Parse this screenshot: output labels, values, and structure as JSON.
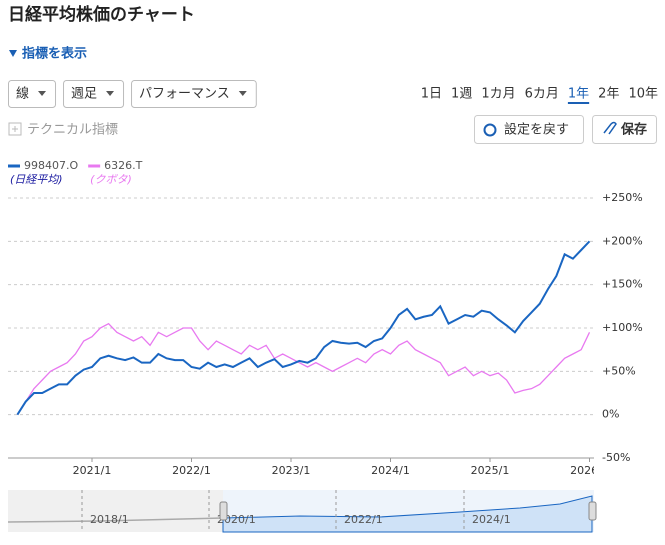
{
  "header": {
    "title": "日経平均株価のチャート",
    "indicator_toggle": "指標を表示"
  },
  "controls": {
    "dropdowns": [
      "線",
      "週足",
      "パフォーマンス"
    ],
    "periods": [
      "1日",
      "1週",
      "1カ月",
      "6カ月",
      "1年",
      "2年",
      "10年"
    ],
    "active_period": "1年",
    "technical": "テクニカル指標",
    "reset": "設定を戻す",
    "save": "保存"
  },
  "navigator": {
    "labels": [
      "2018/1",
      "2020/1",
      "2022/1",
      "2024/1"
    ]
  },
  "chart_data": {
    "type": "line",
    "x": [
      "2020/4",
      "2020/5",
      "2020/6",
      "2020/7",
      "2020/8",
      "2020/9",
      "2020/10",
      "2020/11",
      "2020/12",
      "2021/1",
      "2021/2",
      "2021/3",
      "2021/4",
      "2021/5",
      "2021/6",
      "2021/7",
      "2021/8",
      "2021/9",
      "2021/10",
      "2021/11",
      "2021/12",
      "2022/1",
      "2022/2",
      "2022/3",
      "2022/4",
      "2022/5",
      "2022/6",
      "2022/7",
      "2022/8",
      "2022/9",
      "2022/10",
      "2022/11",
      "2022/12",
      "2023/1",
      "2023/2",
      "2023/3",
      "2023/4",
      "2023/5",
      "2023/6",
      "2023/7",
      "2023/8",
      "2023/9",
      "2023/10",
      "2023/11",
      "2023/12",
      "2024/1",
      "2024/2",
      "2024/3",
      "2024/4",
      "2024/5",
      "2024/6",
      "2024/7",
      "2024/8",
      "2024/9",
      "2024/10",
      "2024/11",
      "2024/12",
      "2025/1",
      "2025/2",
      "2025/3",
      "2025/4",
      "2025/5",
      "2025/6",
      "2025/7",
      "2025/8",
      "2025/9",
      "2025/10",
      "2025/11",
      "2025/12",
      "2026/1"
    ],
    "series": [
      {
        "name": "998407.O",
        "sub": "(日経平均)",
        "color": "#1a66c2",
        "values": [
          0,
          15,
          25,
          25,
          30,
          35,
          35,
          45,
          52,
          55,
          65,
          68,
          65,
          63,
          66,
          60,
          60,
          70,
          65,
          63,
          63,
          55,
          53,
          60,
          55,
          58,
          55,
          60,
          65,
          55,
          60,
          64,
          55,
          58,
          62,
          60,
          65,
          78,
          85,
          83,
          82,
          83,
          78,
          85,
          88,
          100,
          115,
          122,
          110,
          113,
          115,
          125,
          105,
          110,
          115,
          113,
          120,
          118,
          110,
          103,
          95,
          108,
          118,
          128,
          145,
          160,
          185,
          180,
          190,
          200
        ]
      },
      {
        "name": "6326.T",
        "sub": "(クボタ)",
        "color": "#e879f0",
        "values": [
          0,
          15,
          30,
          40,
          50,
          55,
          60,
          70,
          85,
          90,
          100,
          105,
          95,
          90,
          85,
          90,
          80,
          95,
          90,
          95,
          100,
          100,
          85,
          75,
          85,
          80,
          75,
          70,
          80,
          75,
          80,
          65,
          70,
          65,
          60,
          55,
          60,
          55,
          50,
          55,
          60,
          65,
          60,
          70,
          75,
          70,
          80,
          85,
          75,
          70,
          65,
          60,
          45,
          50,
          55,
          45,
          50,
          45,
          48,
          40,
          25,
          28,
          30,
          35,
          45,
          55,
          65,
          70,
          75,
          95
        ]
      }
    ],
    "ylim": [
      -50,
      250
    ],
    "yticks": [
      {
        "value": 250,
        "label": "+250%"
      },
      {
        "value": 200,
        "label": "+200%"
      },
      {
        "value": 150,
        "label": "+150%"
      },
      {
        "value": 100,
        "label": "+100%"
      },
      {
        "value": 50,
        "label": "+50%"
      },
      {
        "value": 0,
        "label": "0%"
      },
      {
        "value": -50,
        "label": "-50%"
      }
    ],
    "xticks": [
      "2021/1",
      "2022/1",
      "2023/1",
      "2024/1",
      "2025/1",
      "2026/1"
    ],
    "grid": true
  }
}
